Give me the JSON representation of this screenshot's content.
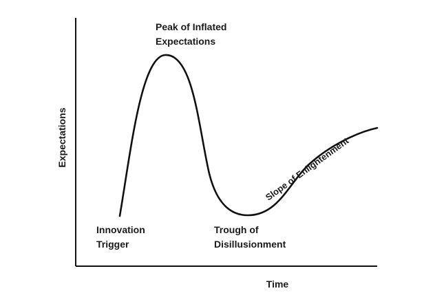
{
  "diagram": {
    "title": "",
    "y_axis_label": "Expectations",
    "x_axis_label": "Time",
    "phases": {
      "innovation_trigger": [
        "Innovation",
        "Trigger"
      ],
      "peak": [
        "Peak of Inflated",
        "Expectations"
      ],
      "trough": [
        "Trough of",
        "Disillusionment"
      ],
      "slope": "Slope of Enlightenment"
    },
    "colors": {
      "curve": "#111111",
      "axis": "#111111",
      "text": "#1a1a1a",
      "background": "#ffffff"
    }
  }
}
